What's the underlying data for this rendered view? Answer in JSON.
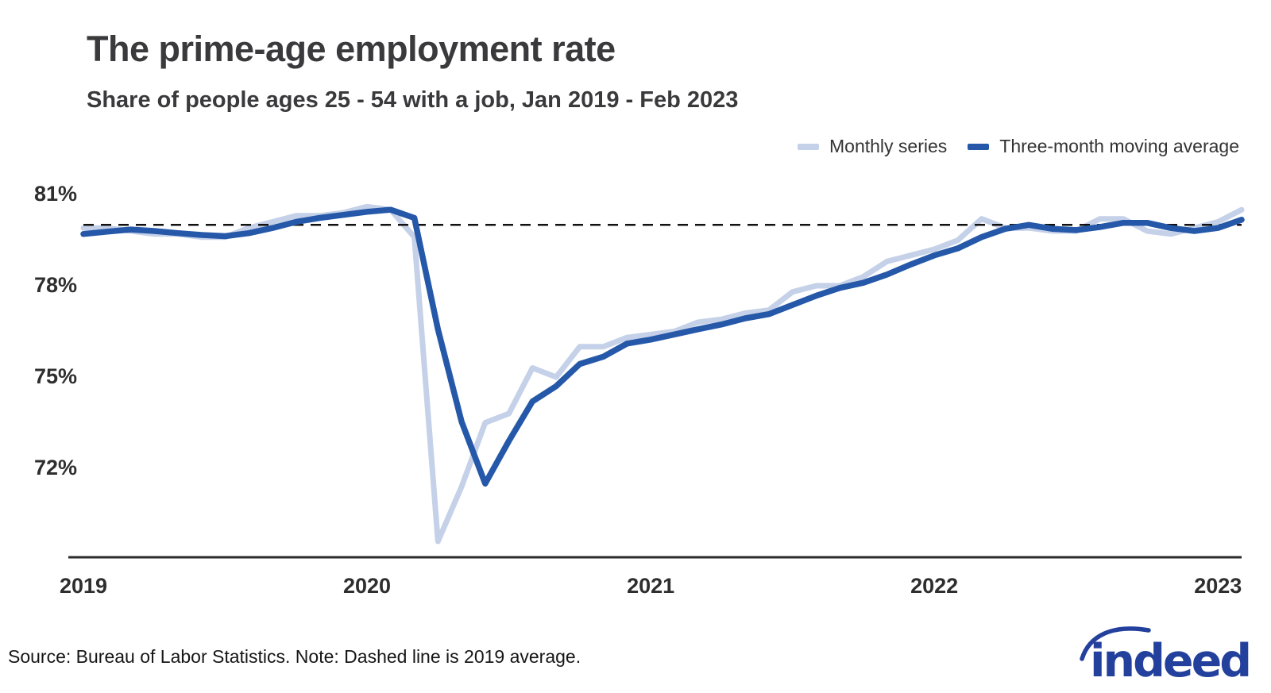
{
  "header": {
    "title": "The prime-age employment rate",
    "subtitle": "Share of people ages 25 - 54 with a job, Jan 2019 - Feb 2023"
  },
  "footer": {
    "source_note": "Source: Bureau of Labor Statistics. Note: Dashed line is 2019 average.",
    "logo_text": "indeed",
    "logo_color": "#23419c"
  },
  "colors": {
    "monthly_series": "#c5d1e8",
    "moving_average": "#2558a8",
    "reference_line": "#111111",
    "axis_line": "#2b2b2b",
    "text": "#3a3a3c"
  },
  "chart_data": {
    "type": "line",
    "title": "The prime-age employment rate",
    "subtitle": "Share of people ages 25 - 54 with a job, Jan 2019 - Feb 2023",
    "grid": false,
    "legend_position": "top-right",
    "y_ticks": [
      81,
      78,
      75,
      72
    ],
    "y_tick_labels": [
      "81%",
      "78%",
      "75%",
      "72%"
    ],
    "x_tick_labels": [
      "2019",
      "2020",
      "2021",
      "2022",
      "2023"
    ],
    "ylim": [
      69.0,
      81.6
    ],
    "reference_line": {
      "value": 80.0,
      "style": "dashed",
      "note": "2019 average"
    },
    "x": [
      "2019-01",
      "2019-02",
      "2019-03",
      "2019-04",
      "2019-05",
      "2019-06",
      "2019-07",
      "2019-08",
      "2019-09",
      "2019-10",
      "2019-11",
      "2019-12",
      "2020-01",
      "2020-02",
      "2020-03",
      "2020-04",
      "2020-05",
      "2020-06",
      "2020-07",
      "2020-08",
      "2020-09",
      "2020-10",
      "2020-11",
      "2020-12",
      "2021-01",
      "2021-02",
      "2021-03",
      "2021-04",
      "2021-05",
      "2021-06",
      "2021-07",
      "2021-08",
      "2021-09",
      "2021-10",
      "2021-11",
      "2021-12",
      "2022-01",
      "2022-02",
      "2022-03",
      "2022-04",
      "2022-05",
      "2022-06",
      "2022-07",
      "2022-08",
      "2022-09",
      "2022-10",
      "2022-11",
      "2022-12",
      "2023-01",
      "2023-02"
    ],
    "series": [
      {
        "name": "Monthly series",
        "color": "#c5d1e8",
        "values": [
          79.9,
          79.9,
          79.8,
          79.7,
          79.7,
          79.6,
          79.6,
          79.9,
          80.1,
          80.3,
          80.3,
          80.4,
          80.6,
          80.5,
          79.6,
          69.6,
          71.4,
          73.5,
          73.8,
          75.3,
          75.0,
          76.0,
          76.0,
          76.3,
          76.4,
          76.5,
          76.8,
          76.9,
          77.1,
          77.2,
          77.8,
          78.0,
          78.0,
          78.3,
          78.8,
          79.0,
          79.2,
          79.5,
          80.2,
          79.9,
          79.9,
          79.8,
          79.8,
          80.2,
          80.2,
          79.8,
          79.7,
          79.9,
          80.1,
          80.5
        ]
      },
      {
        "name": "Three-month moving average",
        "color": "#2558a8",
        "values": [
          79.7,
          79.78,
          79.85,
          79.8,
          79.73,
          79.67,
          79.63,
          79.73,
          79.9,
          80.1,
          80.23,
          80.33,
          80.43,
          80.5,
          80.23,
          76.57,
          73.53,
          71.5,
          72.9,
          74.2,
          74.7,
          75.43,
          75.67,
          76.1,
          76.23,
          76.4,
          76.57,
          76.73,
          76.93,
          77.07,
          77.37,
          77.67,
          77.93,
          78.1,
          78.37,
          78.7,
          79.0,
          79.23,
          79.6,
          79.87,
          80.0,
          79.87,
          79.83,
          79.93,
          80.07,
          80.07,
          79.9,
          79.8,
          79.9,
          80.17
        ]
      }
    ]
  }
}
